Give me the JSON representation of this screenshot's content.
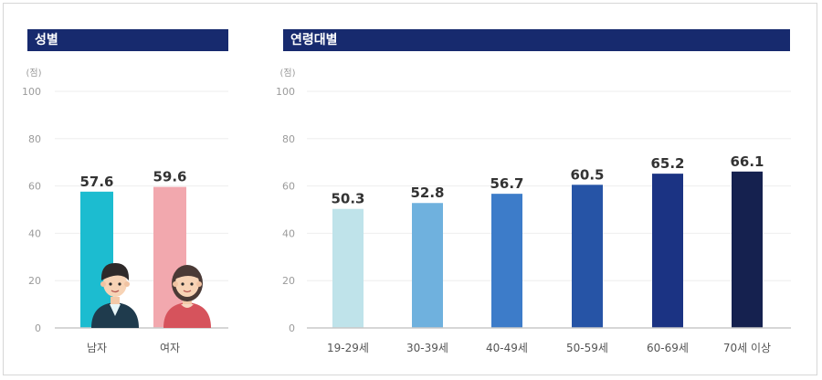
{
  "chart_data": [
    {
      "type": "bar",
      "title": "성별",
      "unit": "(점)",
      "yticks": [
        0,
        20,
        40,
        60,
        80,
        100
      ],
      "ylim": [
        0,
        100
      ],
      "categories": [
        "남자",
        "여자"
      ],
      "values": [
        57.6,
        59.6
      ],
      "value_labels": [
        "57.6",
        "59.6"
      ],
      "colors": [
        "#1cbcd0",
        "#f2a8ae"
      ],
      "icons": [
        "man-avatar-icon",
        "woman-avatar-icon"
      ],
      "grid": true
    },
    {
      "type": "bar",
      "title": "연령대별",
      "unit": "(점)",
      "yticks": [
        0,
        20,
        40,
        60,
        80,
        100
      ],
      "ylim": [
        0,
        100
      ],
      "categories": [
        "19-29세",
        "30-39세",
        "40-49세",
        "50-59세",
        "60-69세",
        "70세 이상"
      ],
      "values": [
        50.3,
        52.8,
        56.7,
        60.5,
        65.2,
        66.1
      ],
      "value_labels": [
        "50.3",
        "52.8",
        "56.7",
        "60.5",
        "65.2",
        "66.1"
      ],
      "colors": [
        "#bfe3ea",
        "#6fb1de",
        "#3d7cc9",
        "#2654a6",
        "#1b3383",
        "#15214f"
      ],
      "grid": true
    }
  ]
}
